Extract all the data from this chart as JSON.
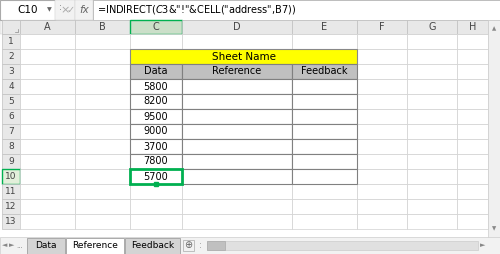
{
  "formula_bar_cell": "C10",
  "formula_bar_formula": "=INDIRECT($C$3&\"!\"&CELL(\"address\",B7))",
  "col_headers": [
    "A",
    "B",
    "C",
    "D",
    "E",
    "F",
    "G",
    "H"
  ],
  "row_headers": [
    "1",
    "2",
    "3",
    "4",
    "5",
    "6",
    "7",
    "8",
    "9",
    "10",
    "11",
    "12",
    "13"
  ],
  "sheet_tabs": [
    "Data",
    "Reference",
    "Feedback"
  ],
  "merged_header_text": "Sheet Name",
  "merged_header_bg": "#FFFF00",
  "col_labels": [
    "Data",
    "Reference",
    "Feedback"
  ],
  "col_label_bg": "#C0C0C0",
  "data_values": [
    5800,
    8200,
    9500,
    9000,
    3700,
    7800,
    5700
  ],
  "active_cell_border": "#00B050",
  "sheet_tab_active": "Reference",
  "border_color": "#D0D0D0",
  "table_border_color": "#808080",
  "active_cell_highlight_col": "#00B050",
  "row_num_highlight_bg": "#E2EFDA"
}
